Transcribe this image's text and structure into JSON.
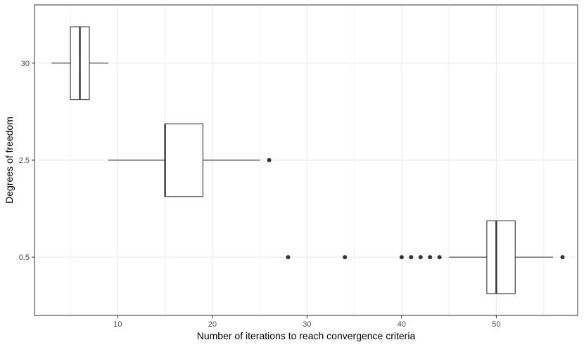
{
  "chart_data": {
    "type": "boxplot",
    "orientation": "horizontal",
    "xlabel": "Number of iterations to reach convergence criteria",
    "ylabel": "Degrees of freedom",
    "xlim": [
      1.2,
      58.6
    ],
    "x_ticks": [
      10,
      20,
      30,
      40,
      50
    ],
    "y_categories": [
      "0.5",
      "2.5",
      "30"
    ],
    "grid": true,
    "boxes": [
      {
        "category": "30",
        "whisker_low": 3,
        "q1": 5,
        "median": 6,
        "q3": 7,
        "whisker_high": 9,
        "outliers": []
      },
      {
        "category": "2.5",
        "whisker_low": 9,
        "q1": 15,
        "median": 15,
        "q3": 19,
        "whisker_high": 25,
        "outliers": [
          26
        ]
      },
      {
        "category": "0.5",
        "whisker_low": 45,
        "q1": 49,
        "median": 50,
        "q3": 52,
        "whisker_high": 56,
        "outliers": [
          28,
          34,
          40,
          41,
          42,
          43,
          44,
          57
        ]
      }
    ],
    "colors": {
      "panel_border": "#333333",
      "grid": "#ebebeb",
      "box": "#333333",
      "box_fill": "#ffffff"
    }
  }
}
